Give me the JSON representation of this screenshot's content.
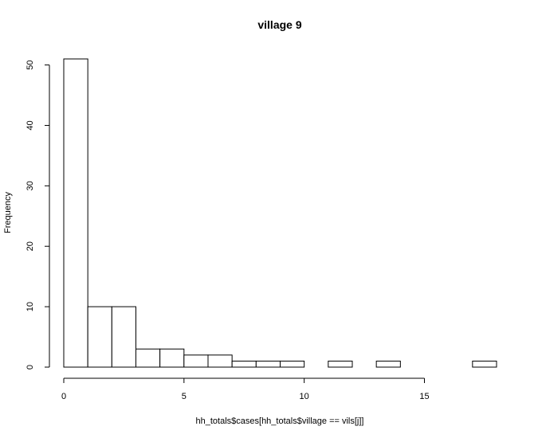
{
  "chart_data": {
    "type": "bar",
    "title": "village 9",
    "xlabel": "hh_totals$cases[hh_totals$village == vils[j]]",
    "ylabel": "Frequency",
    "bins": [
      {
        "start": 0,
        "end": 1,
        "count": 51
      },
      {
        "start": 1,
        "end": 2,
        "count": 10
      },
      {
        "start": 2,
        "end": 3,
        "count": 10
      },
      {
        "start": 3,
        "end": 4,
        "count": 3
      },
      {
        "start": 4,
        "end": 5,
        "count": 3
      },
      {
        "start": 5,
        "end": 6,
        "count": 2
      },
      {
        "start": 6,
        "end": 7,
        "count": 2
      },
      {
        "start": 7,
        "end": 8,
        "count": 1
      },
      {
        "start": 8,
        "end": 9,
        "count": 1
      },
      {
        "start": 9,
        "end": 10,
        "count": 1
      },
      {
        "start": 10,
        "end": 11,
        "count": 0
      },
      {
        "start": 11,
        "end": 12,
        "count": 1
      },
      {
        "start": 12,
        "end": 13,
        "count": 0
      },
      {
        "start": 13,
        "end": 14,
        "count": 1
      },
      {
        "start": 14,
        "end": 15,
        "count": 0
      },
      {
        "start": 15,
        "end": 16,
        "count": 0
      },
      {
        "start": 16,
        "end": 17,
        "count": 0
      },
      {
        "start": 17,
        "end": 18,
        "count": 1
      }
    ],
    "xlim": [
      0,
      18
    ],
    "ylim": [
      0,
      51
    ],
    "xticks": [
      0,
      5,
      10,
      15
    ],
    "yticks": [
      0,
      10,
      20,
      30,
      40,
      50
    ],
    "grid": false,
    "bar_fill": "#ffffff",
    "bar_stroke": "#000000"
  }
}
